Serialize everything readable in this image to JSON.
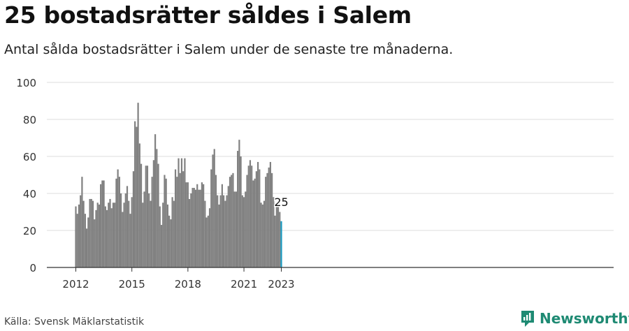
{
  "title": "25 bostadsrätter såldes i Salem",
  "subtitle": "Antal sålda bostadsrätter i Salem under de senaste tre månaderna.",
  "source": "Källa: Svensk Mäklarstatistik",
  "brand": {
    "name": "Newsworthy",
    "icon": "newsworthy-logo-icon",
    "color": "#1e8a73"
  },
  "colors": {
    "bar": "#808080",
    "highlight": "#1a9ac0",
    "grid": "#dddddd",
    "axis": "#333333"
  },
  "chart_data": {
    "type": "bar",
    "title": "",
    "xlabel": "",
    "ylabel": "",
    "ylim": [
      0,
      100
    ],
    "yticks": [
      0,
      20,
      40,
      60,
      80,
      100
    ],
    "grid": true,
    "x_start": "2012-01",
    "xticks": [
      {
        "label": "2012",
        "index": 0
      },
      {
        "label": "2015",
        "index": 36
      },
      {
        "label": "2018",
        "index": 72
      },
      {
        "label": "2021",
        "index": 108
      },
      {
        "label": "2023",
        "index": 132
      }
    ],
    "highlight": {
      "index": 132,
      "value": 25,
      "label": "25"
    },
    "values": [
      33,
      29,
      34,
      39,
      49,
      36,
      29,
      21,
      27,
      37,
      37,
      36,
      26,
      31,
      35,
      34,
      45,
      47,
      47,
      33,
      31,
      35,
      37,
      32,
      35,
      35,
      48,
      53,
      49,
      40,
      30,
      35,
      40,
      44,
      36,
      29,
      38,
      52,
      79,
      76,
      89,
      67,
      56,
      35,
      41,
      55,
      55,
      40,
      36,
      49,
      58,
      72,
      64,
      56,
      33,
      23,
      35,
      50,
      48,
      34,
      28,
      26,
      38,
      36,
      53,
      49,
      59,
      51,
      59,
      52,
      59,
      46,
      46,
      37,
      40,
      43,
      43,
      42,
      45,
      42,
      42,
      46,
      45,
      36,
      27,
      28,
      32,
      53,
      61,
      64,
      50,
      39,
      34,
      39,
      45,
      39,
      36,
      39,
      44,
      49,
      50,
      51,
      41,
      41,
      63,
      69,
      60,
      39,
      38,
      41,
      50,
      55,
      58,
      55,
      47,
      48,
      52,
      57,
      53,
      35,
      34,
      36,
      49,
      51,
      54,
      57,
      51,
      38,
      28,
      35,
      35,
      30,
      25
    ]
  }
}
